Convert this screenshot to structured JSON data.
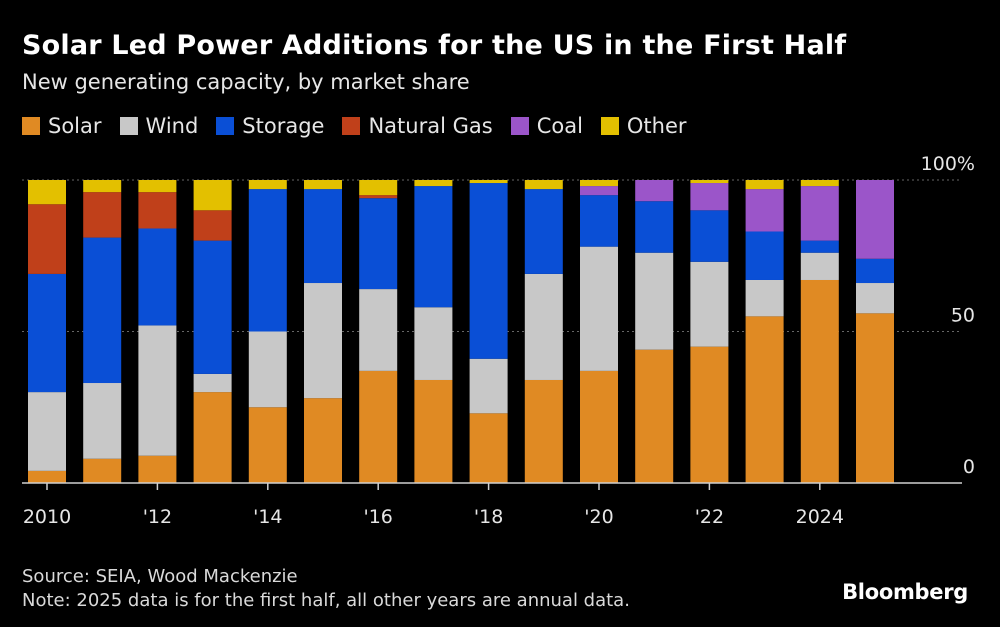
{
  "chart_data": {
    "type": "bar",
    "stacked": true,
    "title": "Solar Led Power Additions for the US in the First Half",
    "subtitle": "New generating capacity, by market share",
    "categories": [
      "2010",
      "2011",
      "2012",
      "2013",
      "2014",
      "2015",
      "2016",
      "2017",
      "2018",
      "2019",
      "2020",
      "2021",
      "2022",
      "2023",
      "2024",
      "2025"
    ],
    "x_tick_labels": [
      "2010",
      "",
      "'12",
      "",
      "'14",
      "",
      "'16",
      "",
      "'18",
      "",
      "'20",
      "",
      "'22",
      "",
      "2024",
      ""
    ],
    "y_tick_labels": [
      "0",
      "50",
      "100%"
    ],
    "ylim": [
      0,
      100
    ],
    "series": [
      {
        "name": "Solar",
        "color": "#e08a23",
        "values": [
          4,
          8,
          9,
          30,
          25,
          28,
          37,
          34,
          23,
          34,
          37,
          44,
          45,
          55,
          67,
          56
        ]
      },
      {
        "name": "Wind",
        "color": "#c8c8c8",
        "values": [
          26,
          25,
          43,
          6,
          25,
          38,
          27,
          24,
          18,
          35,
          41,
          32,
          28,
          12,
          9,
          10
        ]
      },
      {
        "name": "Storage",
        "color": "#0a4fd6",
        "values": [
          39,
          48,
          32,
          44,
          47,
          31,
          30,
          40,
          58,
          28,
          17,
          17,
          17,
          16,
          4,
          8
        ]
      },
      {
        "name": "Natural Gas",
        "color": "#c0401a",
        "values": [
          23,
          15,
          12,
          10,
          0,
          0,
          1,
          0,
          0,
          0,
          0,
          0,
          0,
          0,
          0,
          0
        ]
      },
      {
        "name": "Coal",
        "color": "#9b55c9",
        "values": [
          0,
          0,
          0,
          0,
          0,
          0,
          0,
          0,
          0,
          0,
          3,
          7,
          9,
          14,
          18,
          26
        ]
      },
      {
        "name": "Other",
        "color": "#e3c000",
        "values": [
          8,
          4,
          4,
          10,
          3,
          3,
          5,
          2,
          1,
          3,
          2,
          0,
          1,
          3,
          2,
          0
        ]
      }
    ],
    "legend_position": "top-left",
    "grid": "dotted horizontal"
  },
  "footer": {
    "source": "Source: SEIA, Wood Mackenzie",
    "note": "Note: 2025 data is for the first half, all other years are annual data.",
    "brand": "Bloomberg"
  }
}
